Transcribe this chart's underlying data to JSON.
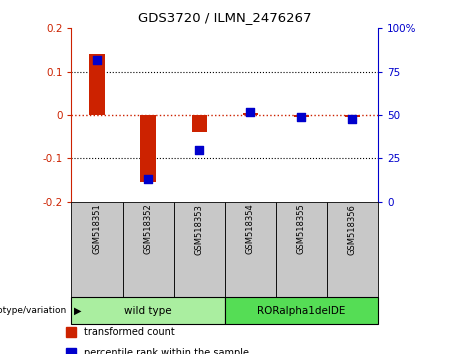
{
  "title": "GDS3720 / ILMN_2476267",
  "samples": [
    "GSM518351",
    "GSM518352",
    "GSM518353",
    "GSM518354",
    "GSM518355",
    "GSM518356"
  ],
  "transformed_count": [
    0.14,
    -0.155,
    -0.04,
    0.005,
    -0.005,
    -0.005
  ],
  "percentile_rank": [
    82,
    13,
    30,
    52,
    49,
    48
  ],
  "ylim_left": [
    -0.2,
    0.2
  ],
  "ylim_right": [
    0,
    100
  ],
  "bar_color": "#cc2200",
  "dot_color": "#0000cc",
  "groups": [
    {
      "label": "wild type",
      "indices": [
        0,
        1,
        2
      ],
      "color": "#aaeea0"
    },
    {
      "label": "RORalpha1delDE",
      "indices": [
        3,
        4,
        5
      ],
      "color": "#55dd55"
    }
  ],
  "group_label": "genotype/variation",
  "legend_items": [
    {
      "label": "transformed count",
      "color": "#cc2200"
    },
    {
      "label": "percentile rank within the sample",
      "color": "#0000cc"
    }
  ],
  "title_color": "black",
  "left_tick_color": "#cc2200",
  "right_tick_color": "#0000cc",
  "hline_color": "#cc2200",
  "background_xtick": "#c8c8c8",
  "bar_width": 0.3
}
